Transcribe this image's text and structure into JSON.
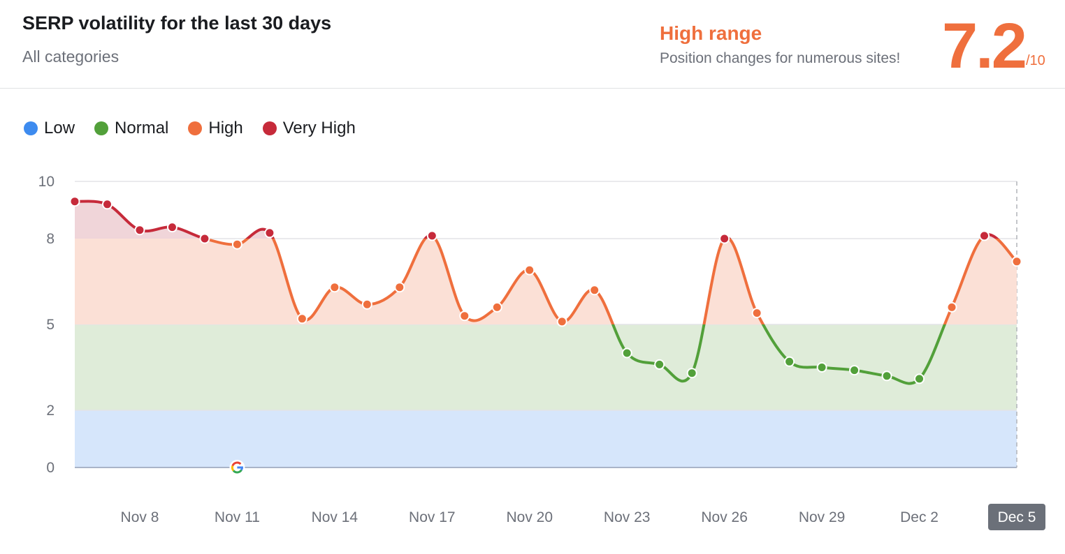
{
  "header": {
    "title": "SERP volatility for the last 30 days",
    "subtitle": "All categories",
    "range_label": "High range",
    "range_desc": "Position changes for numerous sites!",
    "score": "7.2",
    "score_max": "/10"
  },
  "legend": [
    {
      "label": "Low",
      "color": "#3d8bef"
    },
    {
      "label": "Normal",
      "color": "#52a03a"
    },
    {
      "label": "High",
      "color": "#ef6f3d"
    },
    {
      "label": "Very High",
      "color": "#c62a3a"
    }
  ],
  "chart_data": {
    "type": "line",
    "ylim": [
      0,
      10
    ],
    "yticks": [
      "0",
      "2",
      "5",
      "8",
      "10"
    ],
    "bands": [
      {
        "name": "Low",
        "from": 0,
        "to": 2
      },
      {
        "name": "Normal",
        "from": 2,
        "to": 5
      },
      {
        "name": "High",
        "from": 5,
        "to": 8
      },
      {
        "name": "Very High",
        "from": 8,
        "to": 10
      }
    ],
    "x": [
      "Nov 6",
      "Nov 7",
      "Nov 8",
      "Nov 9",
      "Nov 10",
      "Nov 11",
      "Nov 12",
      "Nov 13",
      "Nov 14",
      "Nov 15",
      "Nov 16",
      "Nov 17",
      "Nov 18",
      "Nov 19",
      "Nov 20",
      "Nov 21",
      "Nov 22",
      "Nov 23",
      "Nov 24",
      "Nov 25",
      "Nov 26",
      "Nov 27",
      "Nov 28",
      "Nov 29",
      "Nov 30",
      "Dec 1",
      "Dec 2",
      "Dec 3",
      "Dec 4",
      "Dec 5"
    ],
    "values": [
      9.3,
      9.2,
      8.3,
      8.4,
      8.0,
      7.8,
      8.2,
      5.2,
      6.3,
      5.7,
      6.3,
      8.1,
      5.3,
      5.6,
      6.9,
      5.1,
      6.2,
      4.0,
      3.6,
      3.3,
      8.0,
      5.4,
      3.7,
      3.5,
      3.4,
      3.2,
      3.1,
      5.6,
      8.1,
      7.2
    ],
    "xtick_labels": [
      "Nov 8",
      "Nov 11",
      "Nov 14",
      "Nov 17",
      "Nov 20",
      "Nov 23",
      "Nov 26",
      "Nov 29",
      "Dec 2",
      "Dec 5"
    ],
    "selected": "Dec 5",
    "annotation": {
      "date": "Nov 11",
      "icon": "google-icon"
    },
    "grid": true
  }
}
